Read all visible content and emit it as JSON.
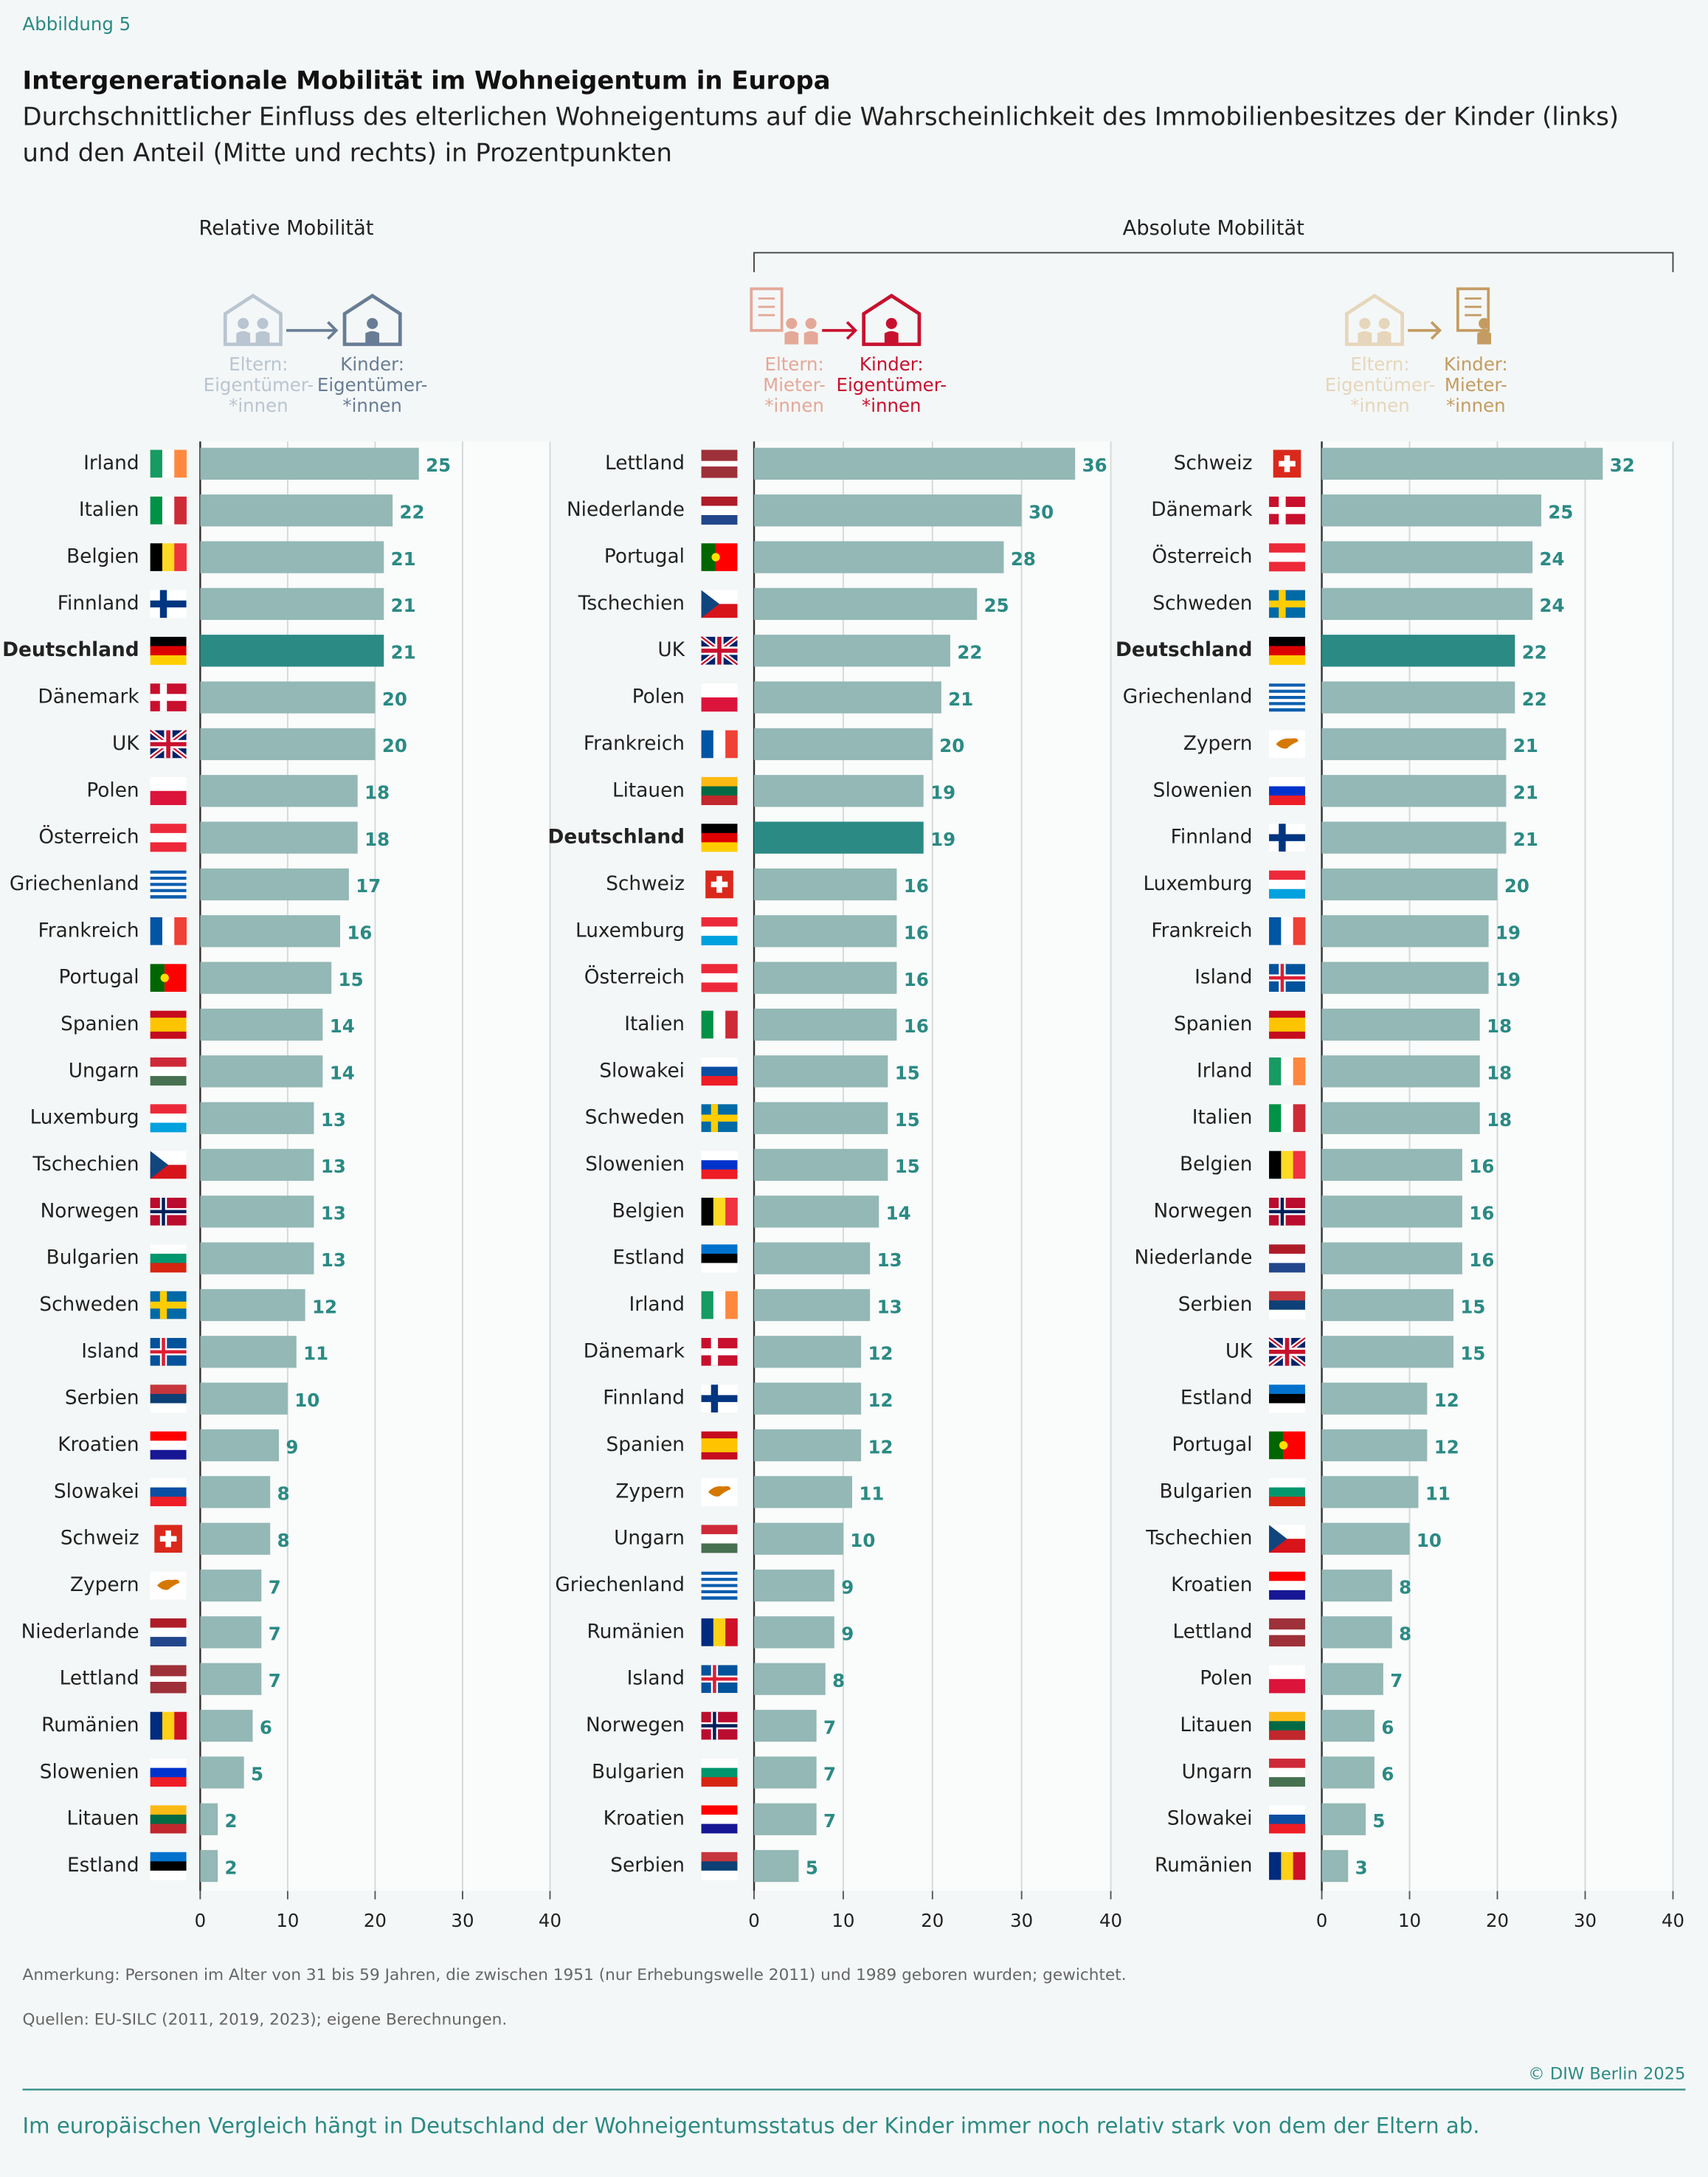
{
  "figure_label": "Abbildung 5",
  "title": "Intergenerationale Mobilität im Wohneigentum in Europa",
  "subtitle": [
    "Durchschnittlicher Einfluss des elterlichen Wohneigentums auf die Wahrscheinlichkeit des Immobilienbesitzes der Kinder (links)",
    "und den Anteil (Mitte und rechts) in Prozentpunkten"
  ],
  "group_labels": [
    "Relative Mobilität",
    "Absolute Mobilität"
  ],
  "note": "Anmerkung: Personen im Alter von 31 bis 59 Jahren, die zwischen 1951 (nur Erhebungswelle 2011) und 1989 geboren wurden; gewichtet.",
  "source": "Quellen: EU-SILC (2011, 2019, 2023); eigene Berechnungen.",
  "copyright": "© DIW Berlin 2025",
  "takeaway": "Im europäischen Vergleich hängt in Deutschland der Wohneigentumsstatus der Kinder immer noch relativ stark von dem der Eltern ab.",
  "chart_data": [
    {
      "type": "bar",
      "orientation": "horizontal",
      "from_label": [
        "Eltern:",
        "Eigentümer-",
        "*innen"
      ],
      "to_label": [
        "Kinder:",
        "Eigentümer-",
        "*innen"
      ],
      "from_color": "#b9c5d1",
      "to_color": "#687d95",
      "categories": [
        "Irland",
        "Italien",
        "Belgien",
        "Finnland",
        "Deutschland",
        "Dänemark",
        "UK",
        "Polen",
        "Österreich",
        "Griechenland",
        "Frankreich",
        "Portugal",
        "Spanien",
        "Ungarn",
        "Luxemburg",
        "Tschechien",
        "Norwegen",
        "Bulgarien",
        "Schweden",
        "Island",
        "Serbien",
        "Kroatien",
        "Slowakei",
        "Schweiz",
        "Zypern",
        "Niederlande",
        "Lettland",
        "Rumänien",
        "Slowenien",
        "Litauen",
        "Estland"
      ],
      "values": [
        25,
        22,
        21,
        21,
        21,
        20,
        20,
        18,
        18,
        17,
        16,
        15,
        14,
        14,
        13,
        13,
        13,
        13,
        12,
        11,
        10,
        9,
        8,
        8,
        7,
        7,
        7,
        6,
        5,
        2,
        2
      ],
      "colors": [
        "#93b8b5",
        "#93b8b5",
        "#93b8b5",
        "#93b8b5",
        "#2b8a84",
        "#93b8b5",
        "#93b8b5",
        "#93b8b5",
        "#93b8b5",
        "#93b8b5",
        "#93b8b5",
        "#93b8b5",
        "#93b8b5",
        "#93b8b5",
        "#93b8b5",
        "#93b8b5",
        "#93b8b5",
        "#93b8b5",
        "#93b8b5",
        "#93b8b5",
        "#93b8b5",
        "#93b8b5",
        "#93b8b5",
        "#93b8b5",
        "#93b8b5",
        "#93b8b5",
        "#93b8b5",
        "#93b8b5",
        "#93b8b5",
        "#93b8b5",
        "#93b8b5"
      ],
      "xlim": [
        0,
        40
      ],
      "xticks": [
        0,
        10,
        20,
        30,
        40
      ],
      "grid": true
    },
    {
      "type": "bar",
      "orientation": "horizontal",
      "from_label": [
        "Eltern:",
        "Mieter-",
        "*innen"
      ],
      "to_label": [
        "Kinder:",
        "Eigentümer-",
        "*innen"
      ],
      "from_color": "#e4a898",
      "to_color": "#c8102e",
      "categories": [
        "Lettland",
        "Niederlande",
        "Portugal",
        "Tschechien",
        "UK",
        "Polen",
        "Frankreich",
        "Litauen",
        "Deutschland",
        "Schweiz",
        "Luxemburg",
        "Österreich",
        "Italien",
        "Slowakei",
        "Schweden",
        "Slowenien",
        "Belgien",
        "Estland",
        "Irland",
        "Dänemark",
        "Finnland",
        "Spanien",
        "Zypern",
        "Ungarn",
        "Griechenland",
        "Rumänien",
        "Island",
        "Norwegen",
        "Bulgarien",
        "Kroatien",
        "Serbien"
      ],
      "values": [
        36,
        30,
        28,
        25,
        22,
        21,
        20,
        19,
        19,
        16,
        16,
        16,
        16,
        15,
        15,
        15,
        14,
        13,
        13,
        12,
        12,
        12,
        11,
        10,
        9,
        9,
        8,
        7,
        7,
        7,
        5
      ],
      "colors": [
        "#93b8b5",
        "#93b8b5",
        "#93b8b5",
        "#93b8b5",
        "#93b8b5",
        "#93b8b5",
        "#93b8b5",
        "#93b8b5",
        "#2b8a84",
        "#93b8b5",
        "#93b8b5",
        "#93b8b5",
        "#93b8b5",
        "#93b8b5",
        "#93b8b5",
        "#93b8b5",
        "#93b8b5",
        "#93b8b5",
        "#93b8b5",
        "#93b8b5",
        "#93b8b5",
        "#93b8b5",
        "#93b8b5",
        "#93b8b5",
        "#93b8b5",
        "#93b8b5",
        "#93b8b5",
        "#93b8b5",
        "#93b8b5",
        "#93b8b5",
        "#93b8b5"
      ],
      "xlim": [
        0,
        40
      ],
      "xticks": [
        0,
        10,
        20,
        30,
        40
      ],
      "grid": true
    },
    {
      "type": "bar",
      "orientation": "horizontal",
      "from_label": [
        "Eltern:",
        "Eigentümer-",
        "*innen"
      ],
      "to_label": [
        "Kinder:",
        "Mieter-",
        "*innen"
      ],
      "from_color": "#e6d6bb",
      "to_color": "#c49c62",
      "categories": [
        "Schweiz",
        "Dänemark",
        "Österreich",
        "Schweden",
        "Deutschland",
        "Griechenland",
        "Zypern",
        "Slowenien",
        "Finnland",
        "Luxemburg",
        "Frankreich",
        "Island",
        "Spanien",
        "Irland",
        "Italien",
        "Belgien",
        "Norwegen",
        "Niederlande",
        "Serbien",
        "UK",
        "Estland",
        "Portugal",
        "Bulgarien",
        "Tschechien",
        "Kroatien",
        "Lettland",
        "Polen",
        "Litauen",
        "Ungarn",
        "Slowakei",
        "Rumänien"
      ],
      "values": [
        32,
        25,
        24,
        24,
        22,
        22,
        21,
        21,
        21,
        20,
        19,
        19,
        18,
        18,
        18,
        16,
        16,
        16,
        15,
        15,
        12,
        12,
        11,
        10,
        8,
        8,
        7,
        6,
        6,
        5,
        3
      ],
      "colors": [
        "#93b8b5",
        "#93b8b5",
        "#93b8b5",
        "#93b8b5",
        "#2b8a84",
        "#93b8b5",
        "#93b8b5",
        "#93b8b5",
        "#93b8b5",
        "#93b8b5",
        "#93b8b5",
        "#93b8b5",
        "#93b8b5",
        "#93b8b5",
        "#93b8b5",
        "#93b8b5",
        "#93b8b5",
        "#93b8b5",
        "#93b8b5",
        "#93b8b5",
        "#93b8b5",
        "#93b8b5",
        "#93b8b5",
        "#93b8b5",
        "#93b8b5",
        "#93b8b5",
        "#93b8b5",
        "#93b8b5",
        "#93b8b5",
        "#93b8b5",
        "#93b8b5"
      ],
      "xlim": [
        0,
        40
      ],
      "xticks": [
        0,
        10,
        20,
        30,
        40
      ],
      "grid": true
    }
  ]
}
